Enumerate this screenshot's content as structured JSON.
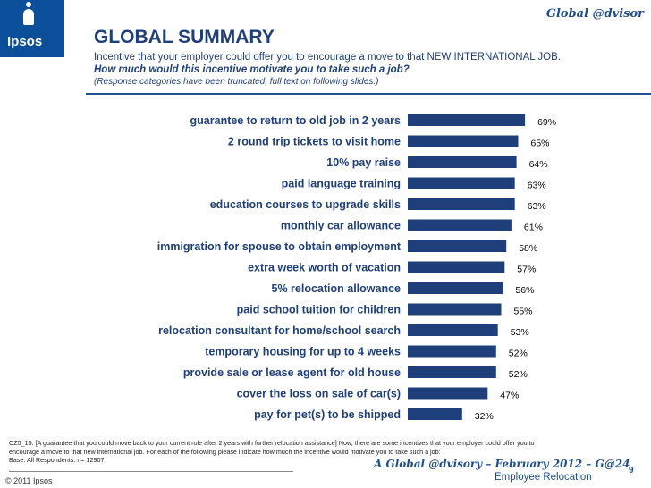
{
  "header": {
    "brand": "Global @dvisor",
    "logo_text": "Ipsos",
    "title": "GLOBAL SUMMARY",
    "subtitle": "Incentive that your employer could offer you to encourage a move to that NEW INTERNATIONAL JOB.",
    "question": "How much would this incentive motivate you to take such a job?",
    "note": "(Response categories have been truncated, full text on following slides.)"
  },
  "chart_data": {
    "type": "bar",
    "orientation": "horizontal",
    "title": "",
    "xlabel": "",
    "ylabel": "",
    "xlim": [
      0,
      100
    ],
    "grid": false,
    "bar_color": "#1f3f7a",
    "categories": [
      "guarantee to return to old job in 2 years",
      "2 round trip tickets to visit home",
      "10% pay raise",
      "paid language training",
      "education courses to upgrade skills",
      "monthly car allowance",
      "immigration for spouse to obtain employment",
      "extra week worth of vacation",
      "5% relocation allowance",
      "paid school tuition for children",
      "relocation consultant for home/school search",
      "temporary housing for up to 4 weeks",
      "provide sale or lease agent for old house",
      "cover the loss on sale of car(s)",
      "pay for pet(s) to be shipped"
    ],
    "values": [
      69,
      65,
      64,
      63,
      63,
      61,
      58,
      57,
      56,
      55,
      53,
      52,
      52,
      47,
      32
    ],
    "labels": [
      "69%",
      "65%",
      "64%",
      "63%",
      "63%",
      "61%",
      "58%",
      "57%",
      "56%",
      "55%",
      "53%",
      "52%",
      "52%",
      "47%",
      "32%"
    ]
  },
  "footer": {
    "footnote_1": "CZ5_15. [A guarantee that you could move back to your current role after 2 years with further relocation assistance] Now, there are some incentives that your employer could offer you to",
    "footnote_2": "encourage a move to that new international job. For each of the following please indicate how much the incentive would motivate you to take such a job:",
    "footnote_3": "Base: All Respondents: n= 12907",
    "report_line1": "A Global @dvisory – February 2012 – G@24",
    "report_line2": "Employee Relocation",
    "page_number": "9",
    "copyright": "© 2011 Ipsos"
  }
}
